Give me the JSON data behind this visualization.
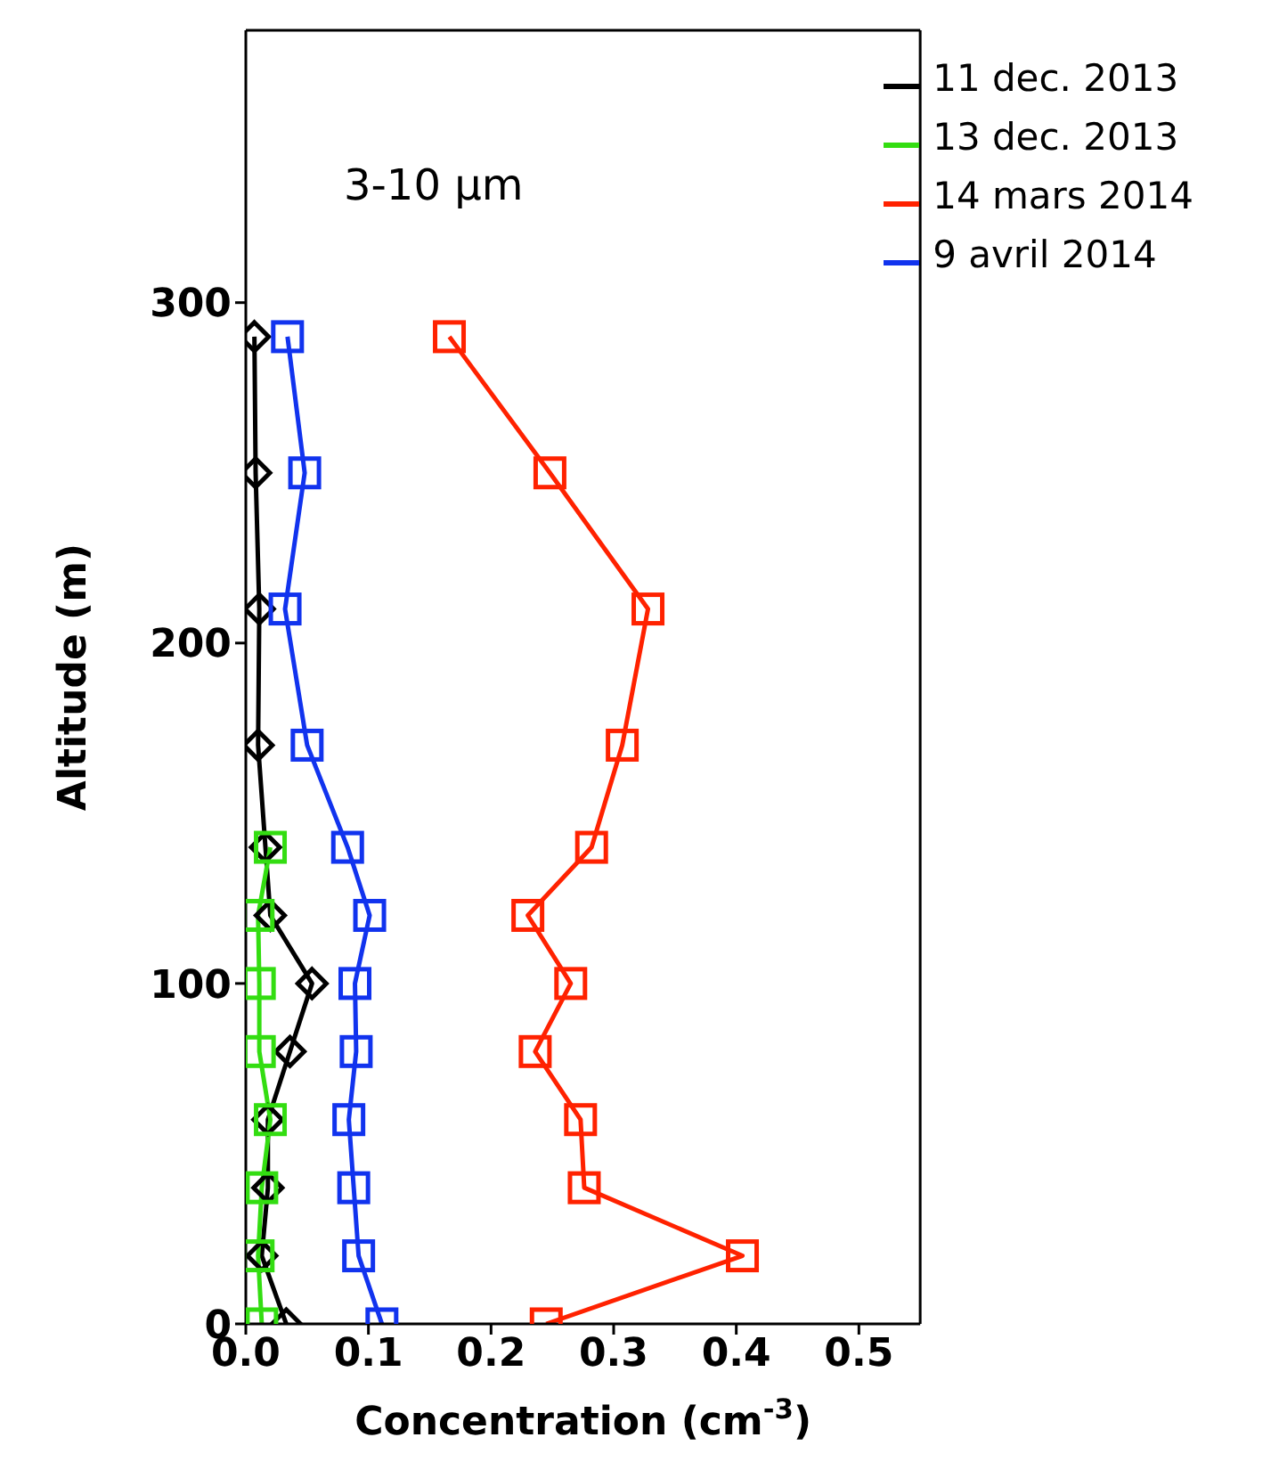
{
  "chart_data": {
    "type": "line",
    "xlabel": "Concentration (cm$^{-3}$)",
    "ylabel": "Altitude (m)",
    "annotations": [
      "3-10 μm"
    ],
    "xlim": [
      0,
      0.55
    ],
    "xticks": [
      {
        "value": 0,
        "label": "0.0"
      },
      {
        "value": 0.1,
        "label": "0.1"
      },
      {
        "value": 0.2,
        "label": "0.2"
      },
      {
        "value": 0.3,
        "label": "0.3"
      },
      {
        "value": 0.4,
        "label": "0.4"
      },
      {
        "value": 0.5,
        "label": "0.5"
      }
    ],
    "ylim": [
      0,
      380
    ],
    "yticks": [
      0,
      100,
      200,
      300
    ],
    "grid": false,
    "legend": "top right",
    "series": [
      {
        "name": "11 dec. 2013",
        "color": "#000000",
        "marker": "diamond",
        "x": [
          0.007,
          0.008,
          0.011,
          0.01,
          0.016,
          0.02,
          0.054,
          0.036,
          0.018,
          0.018,
          0.013,
          0.033
        ],
        "values": [
          290,
          250,
          210,
          170,
          140,
          120,
          100,
          80,
          60,
          40,
          20,
          0
        ]
      },
      {
        "name": "13 dec. 2013",
        "color": "#33dd11",
        "marker": "square",
        "x": [
          0.02,
          0.01,
          0.011,
          0.011,
          0.02,
          0.013,
          0.01,
          0.013
        ],
        "values": [
          140,
          120,
          100,
          80,
          60,
          40,
          20,
          0
        ]
      },
      {
        "name": "14 mars 2014",
        "color": "#ff2200",
        "marker": "square",
        "x": [
          0.166,
          0.248,
          0.328,
          0.307,
          0.282,
          0.23,
          0.265,
          0.236,
          0.273,
          0.276,
          0.405,
          0.245
        ],
        "values": [
          290,
          250,
          210,
          170,
          140,
          120,
          100,
          80,
          60,
          40,
          20,
          0
        ]
      },
      {
        "name": "9 avril 2014",
        "color": "#1133ee",
        "marker": "square",
        "x": [
          0.034,
          0.048,
          0.032,
          0.05,
          0.083,
          0.101,
          0.089,
          0.09,
          0.084,
          0.088,
          0.092,
          0.111
        ],
        "values": [
          290,
          250,
          210,
          170,
          140,
          120,
          100,
          80,
          60,
          40,
          20,
          0
        ]
      }
    ]
  }
}
